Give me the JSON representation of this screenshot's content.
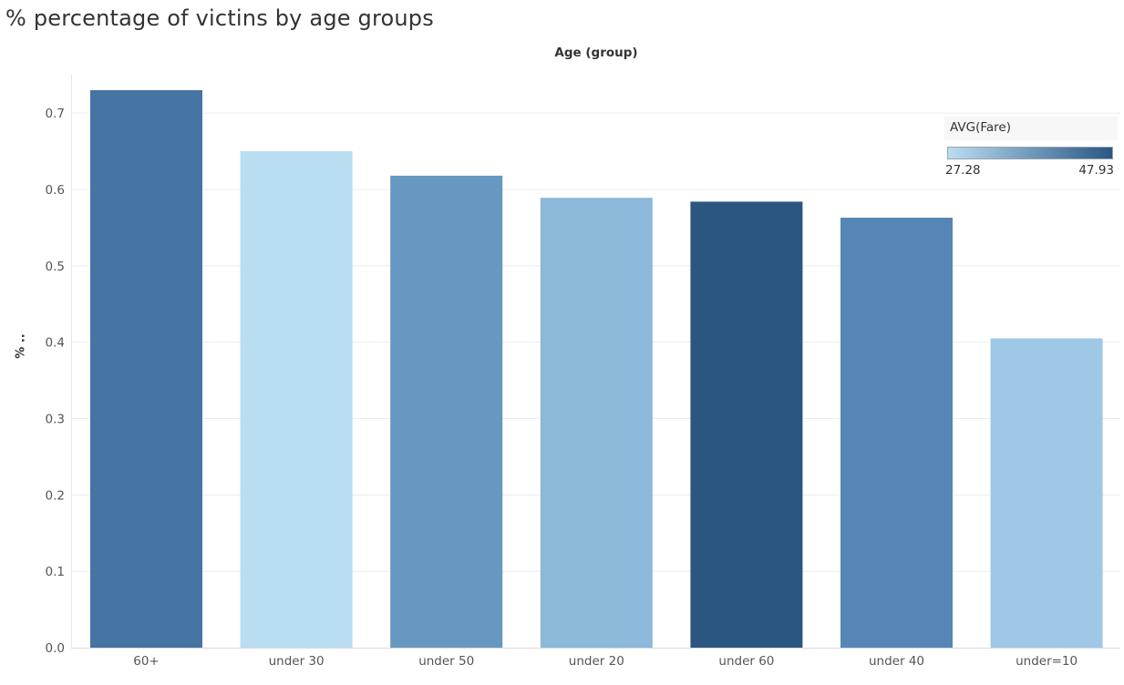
{
  "title": "% percentage of victins by age groups",
  "chart_data": {
    "type": "bar",
    "title": "% percentage of victins by age groups",
    "header_label": "Age (group)",
    "ylabel": "% ..",
    "xlabel": "",
    "ylim": [
      0,
      0.74
    ],
    "yticks": [
      0.0,
      0.1,
      0.2,
      0.3,
      0.4,
      0.5,
      0.6,
      0.7
    ],
    "ytick_labels": [
      "0.0",
      "0.1",
      "0.2",
      "0.3",
      "0.4",
      "0.5",
      "0.6",
      "0.7"
    ],
    "grid": true,
    "categories": [
      "60+",
      "under 30",
      "under 50",
      "under 20",
      "under 60",
      "under 40",
      "under=10"
    ],
    "values": [
      0.73,
      0.65,
      0.618,
      0.589,
      0.584,
      0.563,
      0.405
    ],
    "bar_colors": [
      "#4674a3",
      "#b9ddf1",
      "#6798c1",
      "#8cb8da",
      "#2c5682",
      "#5586b6",
      "#9fc8e7"
    ],
    "color_legend": {
      "title": "AVG(Fare)",
      "min_label": "27.28",
      "max_label": "47.93",
      "min_color": "#b9ddf1",
      "max_color": "#2a5783",
      "placement": "top-right"
    }
  }
}
